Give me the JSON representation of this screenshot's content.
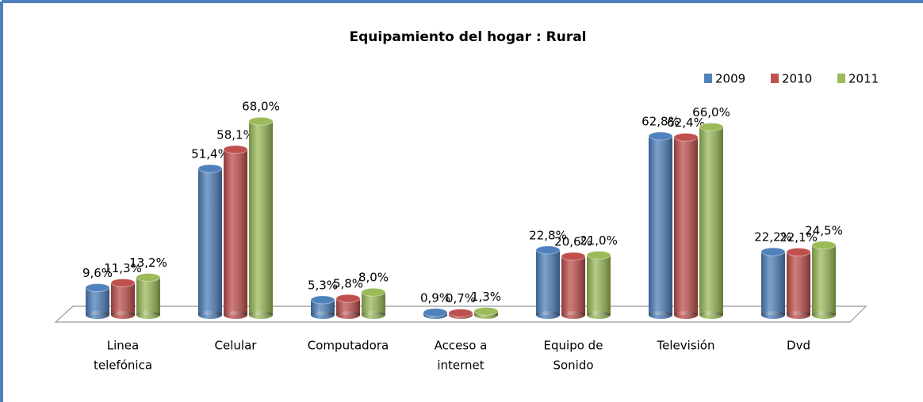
{
  "chart_data": {
    "type": "bar3d",
    "title": "Equipamiento del hogar : Rural",
    "categories": [
      [
        "Linea",
        "telefónica"
      ],
      [
        "Celular"
      ],
      [
        "Computadora"
      ],
      [
        "Acceso a",
        "internet"
      ],
      [
        "Equipo de",
        "Sonido"
      ],
      [
        "Televisión"
      ],
      [
        "Dvd"
      ]
    ],
    "series": [
      {
        "name": "2009",
        "color": "#4f81bd",
        "values": [
          9.6,
          51.4,
          5.3,
          0.9,
          22.8,
          62.8,
          22.2
        ],
        "value_labels": [
          "9,6%",
          "51,4%",
          "5,3%",
          "0,9%",
          "22,8%",
          "62,8%",
          "22,2%"
        ]
      },
      {
        "name": "2010",
        "color": "#c0504d",
        "values": [
          11.3,
          58.1,
          5.8,
          0.7,
          20.6,
          62.4,
          22.1
        ],
        "value_labels": [
          "11,3%",
          "58,1%",
          "5,8%",
          "0,7%",
          "20,6%",
          "62,4%",
          "22,1%"
        ]
      },
      {
        "name": "2011",
        "color": "#9bbb59",
        "values": [
          13.2,
          68.0,
          8.0,
          1.3,
          21.0,
          66.0,
          24.5
        ],
        "value_labels": [
          "13,2%",
          "68,0%",
          "8,0%",
          "1,3%",
          "21,0%",
          "66,0%",
          "24,5%"
        ]
      }
    ],
    "legend": "top-right"
  }
}
